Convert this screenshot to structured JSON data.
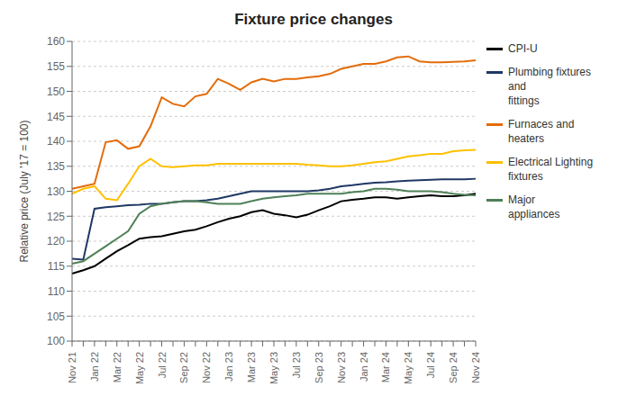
{
  "chart_data": {
    "type": "line",
    "title": "Fixture price changes",
    "ylabel": "Relative price (July '17 = 100)",
    "categories": [
      "Nov 21",
      null,
      "Jan 22",
      null,
      "Mar 22",
      null,
      "May 22",
      null,
      "Jul 22",
      null,
      "Sep 22",
      null,
      "Nov 22",
      null,
      "Jan 23",
      null,
      "Mar 23",
      null,
      "May 23",
      null,
      "Jul 23",
      null,
      "Sep 23",
      null,
      "Nov 23",
      null,
      "Jan 24",
      null,
      "Mar 24",
      null,
      "May 24",
      null,
      "Jul 24",
      null,
      "Sep 24",
      null,
      "Nov 24"
    ],
    "series": [
      {
        "name": "CPI-U",
        "color": "#000000",
        "values": [
          113.5,
          114.2,
          115.0,
          116.5,
          118.0,
          119.2,
          120.5,
          120.8,
          121.0,
          121.5,
          122.0,
          122.3,
          123.0,
          123.8,
          124.5,
          125.0,
          125.8,
          126.2,
          125.5,
          125.2,
          124.8,
          125.3,
          126.2,
          127.0,
          128.0,
          128.3,
          128.5,
          128.8,
          128.8,
          128.5,
          128.8,
          129.0,
          129.2,
          129.0,
          129.0,
          129.2,
          129.5
        ]
      },
      {
        "name": "Plumbing fixtures and\nfittings",
        "color": "#1f3864",
        "values": [
          116.5,
          116.3,
          126.5,
          126.8,
          127.0,
          127.2,
          127.3,
          127.5,
          127.5,
          127.8,
          128.0,
          128.0,
          128.2,
          128.5,
          129.0,
          129.5,
          130.0,
          130.0,
          130.0,
          130.0,
          130.0,
          130.0,
          130.2,
          130.5,
          131.0,
          131.2,
          131.5,
          131.7,
          131.8,
          132.0,
          132.1,
          132.2,
          132.3,
          132.4,
          132.4,
          132.4,
          132.5
        ]
      },
      {
        "name": "Furnaces and\nheaters",
        "color": "#e36c0a",
        "values": [
          130.5,
          131.0,
          131.5,
          139.8,
          140.2,
          138.5,
          139.0,
          143.0,
          148.8,
          147.5,
          147.0,
          149.0,
          149.5,
          152.5,
          151.5,
          150.3,
          151.8,
          152.5,
          152.0,
          152.5,
          152.5,
          152.8,
          153.0,
          153.5,
          154.5,
          155.0,
          155.5,
          155.5,
          156.0,
          156.8,
          157.0,
          156.0,
          155.8,
          155.8,
          155.9,
          156.0,
          156.2
        ]
      },
      {
        "name": "Electrical Lighting\nfixtures",
        "color": "#ffc000",
        "values": [
          129.5,
          130.5,
          131.0,
          128.5,
          128.2,
          131.5,
          135.0,
          136.5,
          135.0,
          134.8,
          135.0,
          135.2,
          135.2,
          135.5,
          135.5,
          135.5,
          135.5,
          135.5,
          135.5,
          135.5,
          135.5,
          135.3,
          135.2,
          135.0,
          135.0,
          135.2,
          135.5,
          135.8,
          136.0,
          136.5,
          137.0,
          137.2,
          137.5,
          137.5,
          138.0,
          138.2,
          138.3
        ]
      },
      {
        "name": "Major\nappliances",
        "color": "#4e8057",
        "values": [
          115.5,
          116.0,
          117.5,
          119.0,
          120.5,
          122.0,
          125.5,
          127.0,
          127.5,
          127.8,
          128.0,
          128.0,
          127.8,
          127.5,
          127.5,
          127.5,
          128.0,
          128.5,
          128.8,
          129.0,
          129.2,
          129.5,
          129.5,
          129.5,
          129.5,
          129.8,
          130.0,
          130.5,
          130.5,
          130.3,
          130.0,
          130.0,
          130.0,
          129.8,
          129.5,
          129.3,
          129.2
        ]
      }
    ],
    "ylim": [
      100,
      160
    ],
    "yticks": [
      100,
      105,
      110,
      115,
      120,
      125,
      130,
      135,
      140,
      145,
      150,
      155,
      160
    ],
    "grid": true,
    "legend": "right"
  }
}
